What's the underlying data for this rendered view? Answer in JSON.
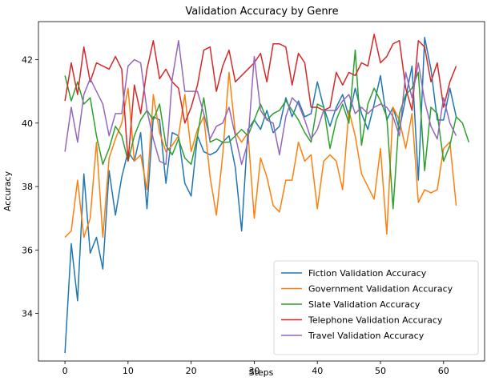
{
  "chart_data": {
    "type": "line",
    "title": "Validation Accuracy by Genre",
    "xlabel": "Steps",
    "ylabel": "Accuracy",
    "xlim": [
      -4.2,
      66.5
    ],
    "ylim": [
      32.5,
      43.2
    ],
    "xticks": [
      0,
      10,
      20,
      30,
      40,
      50,
      60
    ],
    "yticks": [
      34,
      36,
      38,
      40,
      42
    ],
    "grid": false,
    "legend_position": "lower-right",
    "series": [
      {
        "name": "Fiction Validation Accuracy",
        "color": "#1f77b4",
        "values": [
          32.75,
          36.2,
          34.4,
          38.4,
          35.9,
          36.4,
          35.4,
          38.5,
          37.1,
          38.3,
          39.1,
          38.8,
          39.7,
          37.3,
          40.2,
          40.1,
          38.1,
          39.7,
          39.6,
          38.1,
          37.7,
          39.6,
          39.1,
          39.0,
          39.1,
          39.4,
          39.6,
          38.6,
          36.6,
          39.8,
          40.1,
          39.8,
          40.4,
          39.7,
          39.9,
          40.8,
          40.2,
          40.7,
          40.2,
          40.3,
          41.3,
          40.5,
          39.9,
          40.5,
          40.9,
          40.2,
          41.1,
          40.3,
          39.8,
          40.6,
          41.5,
          40.1,
          40.5,
          39.8,
          40.8,
          41.8,
          38.2,
          42.7,
          41.7,
          40.1,
          40.1,
          41.1,
          40.2
        ]
      },
      {
        "name": "Government Validation Accuracy",
        "color": "#ff7f0e",
        "values": [
          36.4,
          36.6,
          38.2,
          36.4,
          37.0,
          39.4,
          36.4,
          38.9,
          39.5,
          40.0,
          41.1,
          38.8,
          39.0,
          37.9,
          40.9,
          39.7,
          39.1,
          39.3,
          39.6,
          40.9,
          39.1,
          39.8,
          40.2,
          38.3,
          37.1,
          39.0,
          41.6,
          39.7,
          39.4,
          39.7,
          37.0,
          38.9,
          38.3,
          37.4,
          37.2,
          38.2,
          38.2,
          39.4,
          38.8,
          39.0,
          37.3,
          38.8,
          39.0,
          38.8,
          37.9,
          40.4,
          39.6,
          38.4,
          38.0,
          37.6,
          39.2,
          36.5,
          40.5,
          40.1,
          39.2,
          40.3,
          37.5,
          37.9,
          37.8,
          37.9,
          39.2,
          39.4,
          37.4
        ]
      },
      {
        "name": "Slate Validation Accuracy",
        "color": "#2ca02c",
        "values": [
          41.5,
          40.7,
          41.3,
          40.6,
          40.8,
          39.6,
          38.7,
          39.2,
          39.9,
          39.6,
          38.8,
          39.6,
          40.1,
          40.4,
          40.1,
          40.6,
          39.3,
          39.0,
          39.5,
          38.9,
          38.7,
          39.6,
          40.8,
          39.4,
          39.5,
          39.4,
          39.4,
          39.6,
          39.8,
          39.6,
          40.1,
          40.6,
          40.1,
          40.3,
          40.4,
          40.7,
          40.4,
          40.1,
          39.7,
          39.4,
          40.6,
          40.5,
          39.2,
          40.1,
          40.6,
          40.0,
          42.3,
          39.3,
          40.6,
          41.1,
          40.7,
          40.2,
          37.3,
          40.3,
          40.9,
          41.1,
          41.6,
          38.5,
          40.5,
          40.3,
          38.8,
          39.3,
          40.2,
          40.0,
          39.4
        ]
      },
      {
        "name": "Telephone Validation Accuracy",
        "color": "#d62728",
        "values": [
          40.7,
          41.9,
          40.9,
          42.4,
          41.3,
          41.9,
          41.8,
          41.7,
          42.1,
          41.7,
          38.8,
          41.2,
          40.3,
          41.7,
          42.6,
          41.4,
          41.7,
          41.3,
          41.1,
          40.0,
          40.5,
          41.2,
          42.3,
          42.4,
          41.0,
          41.8,
          42.3,
          41.3,
          41.5,
          41.7,
          41.9,
          42.2,
          41.3,
          42.5,
          42.5,
          42.4,
          41.2,
          42.2,
          41.9,
          40.5,
          40.5,
          40.4,
          40.5,
          41.6,
          41.2,
          41.6,
          41.5,
          41.9,
          41.8,
          42.8,
          41.9,
          42.1,
          42.5,
          42.6,
          41.1,
          40.4,
          42.6,
          42.4,
          41.3,
          41.9,
          40.5,
          41.3,
          41.8
        ]
      },
      {
        "name": "Travel Validation Accuracy",
        "color": "#9467bd",
        "values": [
          39.1,
          40.5,
          39.4,
          40.9,
          41.4,
          41.0,
          40.6,
          39.6,
          40.3,
          40.3,
          41.8,
          42.0,
          41.9,
          40.4,
          39.5,
          38.8,
          38.7,
          41.4,
          42.6,
          41.0,
          41.0,
          41.0,
          40.3,
          39.5,
          39.9,
          40.0,
          40.5,
          39.6,
          38.7,
          39.4,
          42.1,
          40.4,
          40.1,
          40.0,
          39.0,
          40.2,
          40.8,
          40.6,
          40.1,
          39.5,
          39.8,
          40.4,
          40.4,
          40.4,
          40.7,
          40.9,
          40.3,
          40.5,
          40.3,
          40.5,
          40.6,
          40.5,
          40.2,
          39.6,
          41.6,
          40.8,
          41.9,
          40.7,
          39.9,
          39.5,
          40.8,
          40.0,
          39.6
        ]
      }
    ]
  }
}
